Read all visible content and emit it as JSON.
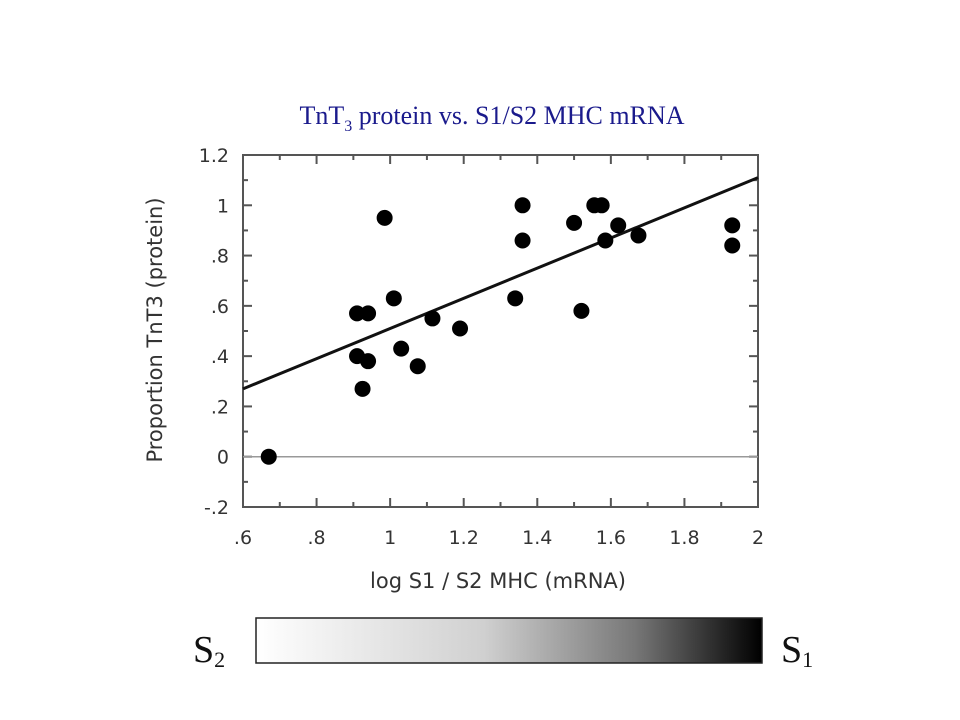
{
  "chart_data": {
    "type": "scatter",
    "title": {
      "prefix": "TnT",
      "subscript": "3",
      "suffix": " protein vs. S1/S2 MHC mRNA"
    },
    "xlabel": "log S1 / S2 MHC (mRNA)",
    "ylabel": "Proportion TnT3 (protein)",
    "xlim": [
      0.6,
      2.0
    ],
    "ylim": [
      -0.2,
      1.2
    ],
    "xticks": [
      0.6,
      0.8,
      1.0,
      1.2,
      1.4,
      1.6,
      1.8,
      2.0
    ],
    "xtick_labels": [
      ".6",
      ".8",
      "1",
      "1.2",
      "1.4",
      "1.6",
      "1.8",
      "2"
    ],
    "yticks": [
      -0.2,
      0,
      0.2,
      0.4,
      0.6,
      0.8,
      1.0,
      1.2
    ],
    "ytick_labels": [
      "-.2",
      "0",
      ".2",
      ".4",
      ".6",
      ".8",
      "1",
      "1.2"
    ],
    "x": [
      0.67,
      0.91,
      0.94,
      0.91,
      0.94,
      0.925,
      0.985,
      1.01,
      1.03,
      1.075,
      1.115,
      1.19,
      1.34,
      1.36,
      1.36,
      1.5,
      1.52,
      1.555,
      1.575,
      1.585,
      1.62,
      1.675,
      1.93,
      1.93
    ],
    "y": [
      0.0,
      0.57,
      0.57,
      0.4,
      0.38,
      0.27,
      0.95,
      0.63,
      0.43,
      0.36,
      0.55,
      0.51,
      0.63,
      1.0,
      0.86,
      0.93,
      0.58,
      1.0,
      1.0,
      0.86,
      0.92,
      0.88,
      0.92,
      0.84
    ],
    "fit_line": {
      "x": [
        0.6,
        2.0
      ],
      "y": [
        0.27,
        1.11
      ]
    },
    "reference_line_y": 0,
    "grid": false
  },
  "gradient_bar": {
    "left_label": {
      "main": "S",
      "sub": "2"
    },
    "right_label": {
      "main": "S",
      "sub": "1"
    },
    "color_start": "#ffffff",
    "color_end": "#000000"
  }
}
